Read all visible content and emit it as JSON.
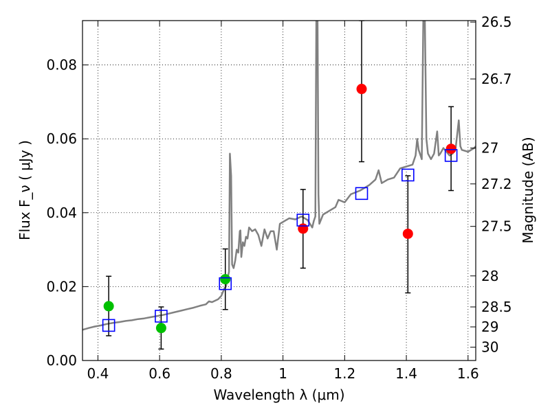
{
  "chart_data": {
    "type": "scatter",
    "xlabel": "Wavelength  λ (μm)",
    "ylabel": "Flux  F_ν  ( μJy )",
    "y2label": "Magnitude (AB)",
    "xlim": [
      0.35,
      1.625
    ],
    "ylim": [
      0.0,
      0.092
    ],
    "grid": true,
    "x_ticks": [
      {
        "value": 0.4,
        "label": "0.4"
      },
      {
        "value": 0.6,
        "label": "0.6"
      },
      {
        "value": 0.8,
        "label": "0.8"
      },
      {
        "value": 1.0,
        "label": "1"
      },
      {
        "value": 1.2,
        "label": "1.2"
      },
      {
        "value": 1.4,
        "label": "1.4"
      },
      {
        "value": 1.6,
        "label": "1.6"
      }
    ],
    "y_ticks": [
      {
        "value": 0.0,
        "label": "0.00"
      },
      {
        "value": 0.02,
        "label": "0.02"
      },
      {
        "value": 0.04,
        "label": "0.04"
      },
      {
        "value": 0.06,
        "label": "0.06"
      },
      {
        "value": 0.08,
        "label": "0.08"
      }
    ],
    "y2_ticks": [
      {
        "flux": 0.0916,
        "label": "26.5"
      },
      {
        "flux": 0.0762,
        "label": "26.7"
      },
      {
        "flux": 0.0575,
        "label": "27"
      },
      {
        "flux": 0.0478,
        "label": "27.2"
      },
      {
        "flux": 0.0363,
        "label": "27.5"
      },
      {
        "flux": 0.0229,
        "label": "28"
      },
      {
        "flux": 0.0145,
        "label": "28.5"
      },
      {
        "flux": 0.0091,
        "label": "29"
      },
      {
        "flux": 0.0036,
        "label": "30"
      }
    ],
    "template_spectrum": {
      "color": "#808080",
      "points": [
        [
          0.35,
          0.0083
        ],
        [
          0.37,
          0.0088
        ],
        [
          0.39,
          0.0092
        ],
        [
          0.41,
          0.0095
        ],
        [
          0.43,
          0.0099
        ],
        [
          0.45,
          0.0102
        ],
        [
          0.47,
          0.0104
        ],
        [
          0.49,
          0.0107
        ],
        [
          0.51,
          0.0109
        ],
        [
          0.53,
          0.0112
        ],
        [
          0.55,
          0.0114
        ],
        [
          0.57,
          0.0117
        ],
        [
          0.59,
          0.012
        ],
        [
          0.61,
          0.0123
        ],
        [
          0.63,
          0.0127
        ],
        [
          0.65,
          0.0131
        ],
        [
          0.67,
          0.0135
        ],
        [
          0.69,
          0.0139
        ],
        [
          0.71,
          0.0143
        ],
        [
          0.73,
          0.0148
        ],
        [
          0.75,
          0.0152
        ],
        [
          0.76,
          0.016
        ],
        [
          0.77,
          0.0158
        ],
        [
          0.79,
          0.0166
        ],
        [
          0.8,
          0.0175
        ],
        [
          0.81,
          0.0195
        ],
        [
          0.815,
          0.02
        ],
        [
          0.82,
          0.022
        ],
        [
          0.825,
          0.024
        ],
        [
          0.828,
          0.056
        ],
        [
          0.832,
          0.05
        ],
        [
          0.835,
          0.026
        ],
        [
          0.84,
          0.025
        ],
        [
          0.845,
          0.027
        ],
        [
          0.85,
          0.03
        ],
        [
          0.855,
          0.0292
        ],
        [
          0.86,
          0.035
        ],
        [
          0.862,
          0.0352
        ],
        [
          0.865,
          0.028
        ],
        [
          0.87,
          0.032
        ],
        [
          0.875,
          0.031
        ],
        [
          0.88,
          0.0335
        ],
        [
          0.885,
          0.033
        ],
        [
          0.89,
          0.036
        ],
        [
          0.9,
          0.035
        ],
        [
          0.91,
          0.0355
        ],
        [
          0.92,
          0.034
        ],
        [
          0.93,
          0.031
        ],
        [
          0.94,
          0.0355
        ],
        [
          0.95,
          0.033
        ],
        [
          0.96,
          0.035
        ],
        [
          0.97,
          0.035
        ],
        [
          0.98,
          0.03
        ],
        [
          0.99,
          0.037
        ],
        [
          1.0,
          0.0375
        ],
        [
          1.02,
          0.0385
        ],
        [
          1.04,
          0.0382
        ],
        [
          1.06,
          0.039
        ],
        [
          1.08,
          0.038
        ],
        [
          1.095,
          0.036
        ],
        [
          1.1,
          0.0378
        ],
        [
          1.105,
          0.039
        ],
        [
          1.108,
          0.092
        ],
        [
          1.112,
          0.092
        ],
        [
          1.115,
          0.045
        ],
        [
          1.118,
          0.037
        ],
        [
          1.13,
          0.0395
        ],
        [
          1.15,
          0.0405
        ],
        [
          1.17,
          0.0415
        ],
        [
          1.18,
          0.0435
        ],
        [
          1.2,
          0.0428
        ],
        [
          1.22,
          0.045
        ],
        [
          1.25,
          0.046
        ],
        [
          1.28,
          0.0475
        ],
        [
          1.3,
          0.049
        ],
        [
          1.31,
          0.0515
        ],
        [
          1.32,
          0.048
        ],
        [
          1.34,
          0.049
        ],
        [
          1.36,
          0.0495
        ],
        [
          1.38,
          0.052
        ],
        [
          1.4,
          0.0525
        ],
        [
          1.42,
          0.053
        ],
        [
          1.43,
          0.0555
        ],
        [
          1.435,
          0.06
        ],
        [
          1.44,
          0.057
        ],
        [
          1.45,
          0.0545
        ],
        [
          1.455,
          0.092
        ],
        [
          1.46,
          0.092
        ],
        [
          1.465,
          0.06
        ],
        [
          1.47,
          0.056
        ],
        [
          1.48,
          0.0545
        ],
        [
          1.49,
          0.056
        ],
        [
          1.5,
          0.062
        ],
        [
          1.505,
          0.0555
        ],
        [
          1.51,
          0.056
        ],
        [
          1.52,
          0.0575
        ],
        [
          1.53,
          0.0565
        ],
        [
          1.54,
          0.0555
        ],
        [
          1.55,
          0.056
        ],
        [
          1.56,
          0.0575
        ],
        [
          1.57,
          0.065
        ],
        [
          1.575,
          0.058
        ],
        [
          1.58,
          0.057
        ],
        [
          1.6,
          0.0565
        ],
        [
          1.62,
          0.0575
        ],
        [
          1.625,
          0.058
        ]
      ]
    },
    "series": [
      {
        "marker": "circle",
        "color": "#00c000",
        "points": [
          {
            "x": 0.435,
            "y": 0.0147,
            "err_low": 0.0067,
            "err_high": 0.0228
          },
          {
            "x": 0.605,
            "y": 0.0088,
            "err_low": 0.0031,
            "err_high": 0.0145
          },
          {
            "x": 0.813,
            "y": 0.022,
            "err_low": 0.0138,
            "err_high": 0.0302
          }
        ]
      },
      {
        "marker": "circle",
        "color": "#ff0000",
        "points": [
          {
            "x": 1.065,
            "y": 0.0357,
            "err_low": 0.025,
            "err_high": 0.0463
          },
          {
            "x": 1.255,
            "y": 0.0735,
            "err_low": 0.0538,
            "err_high": 0.092
          },
          {
            "x": 1.405,
            "y": 0.0343,
            "err_low": 0.0183,
            "err_high": 0.05
          },
          {
            "x": 1.545,
            "y": 0.0573,
            "err_low": 0.046,
            "err_high": 0.0687
          }
        ]
      },
      {
        "marker": "open-square",
        "color": "#0000ff",
        "points": [
          {
            "x": 0.435,
            "y": 0.0095
          },
          {
            "x": 0.605,
            "y": 0.012
          },
          {
            "x": 0.813,
            "y": 0.0208
          },
          {
            "x": 1.065,
            "y": 0.038
          },
          {
            "x": 1.255,
            "y": 0.0452
          },
          {
            "x": 1.405,
            "y": 0.0502
          },
          {
            "x": 1.545,
            "y": 0.0555
          }
        ]
      }
    ]
  }
}
